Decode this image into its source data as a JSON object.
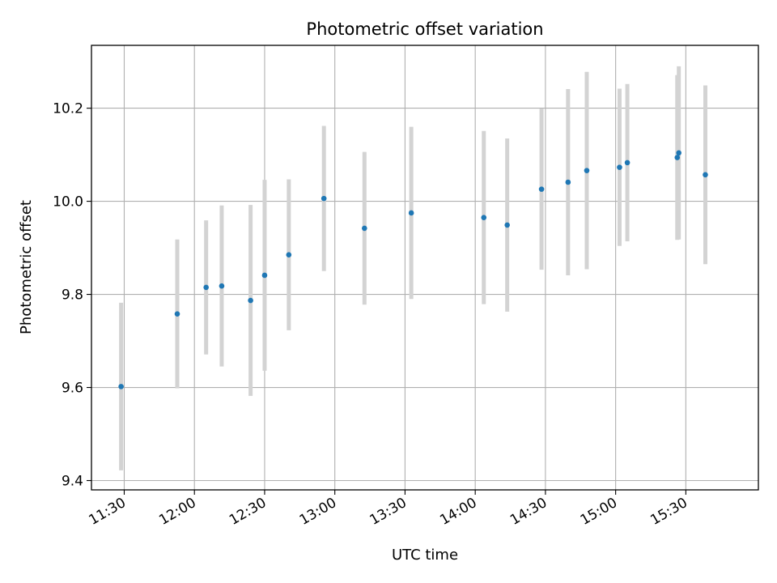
{
  "chart_data": {
    "type": "scatter",
    "title": "Photometric offset variation",
    "xlabel": "UTC time",
    "ylabel": "Photometric offset",
    "grid": true,
    "xlim": [
      "11:16",
      "16:01"
    ],
    "ylim": [
      9.38,
      10.335
    ],
    "x_ticks": [
      "11:30",
      "12:00",
      "12:30",
      "13:00",
      "13:30",
      "14:00",
      "14:30",
      "15:00",
      "15:30"
    ],
    "y_ticks": [
      9.4,
      9.6,
      9.8,
      10.0,
      10.2
    ],
    "y_tick_labels": [
      "9.4",
      "9.6",
      "9.8",
      "10.0",
      "10.2"
    ],
    "marker_color": "#1f77b4",
    "errorbar_color": "#d3d3d3",
    "series": [
      {
        "points": [
          {
            "x": "11:28:40",
            "y": 9.602,
            "yerr": 0.18
          },
          {
            "x": "11:52:40",
            "y": 9.758,
            "yerr": 0.16
          },
          {
            "x": "12:05:00",
            "y": 9.815,
            "yerr": 0.144
          },
          {
            "x": "12:11:40",
            "y": 9.818,
            "yerr": 0.173
          },
          {
            "x": "12:24:00",
            "y": 9.787,
            "yerr": 0.205
          },
          {
            "x": "12:30:00",
            "y": 9.841,
            "yerr": 0.205
          },
          {
            "x": "12:40:20",
            "y": 9.885,
            "yerr": 0.162
          },
          {
            "x": "12:55:20",
            "y": 10.006,
            "yerr": 0.156
          },
          {
            "x": "13:12:40",
            "y": 9.942,
            "yerr": 0.164
          },
          {
            "x": "13:32:40",
            "y": 9.975,
            "yerr": 0.185
          },
          {
            "x": "14:03:40",
            "y": 9.965,
            "yerr": 0.186
          },
          {
            "x": "14:13:40",
            "y": 9.949,
            "yerr": 0.186
          },
          {
            "x": "14:28:20",
            "y": 10.026,
            "yerr": 0.173
          },
          {
            "x": "14:39:40",
            "y": 10.041,
            "yerr": 0.2
          },
          {
            "x": "14:47:40",
            "y": 10.066,
            "yerr": 0.212
          },
          {
            "x": "15:01:40",
            "y": 10.073,
            "yerr": 0.169
          },
          {
            "x": "15:05:00",
            "y": 10.083,
            "yerr": 0.169
          },
          {
            "x": "15:26:20",
            "y": 10.094,
            "yerr": 0.177
          },
          {
            "x": "15:27:00",
            "y": 10.104,
            "yerr": 0.186
          },
          {
            "x": "15:38:20",
            "y": 10.057,
            "yerr": 0.192
          }
        ]
      }
    ]
  }
}
